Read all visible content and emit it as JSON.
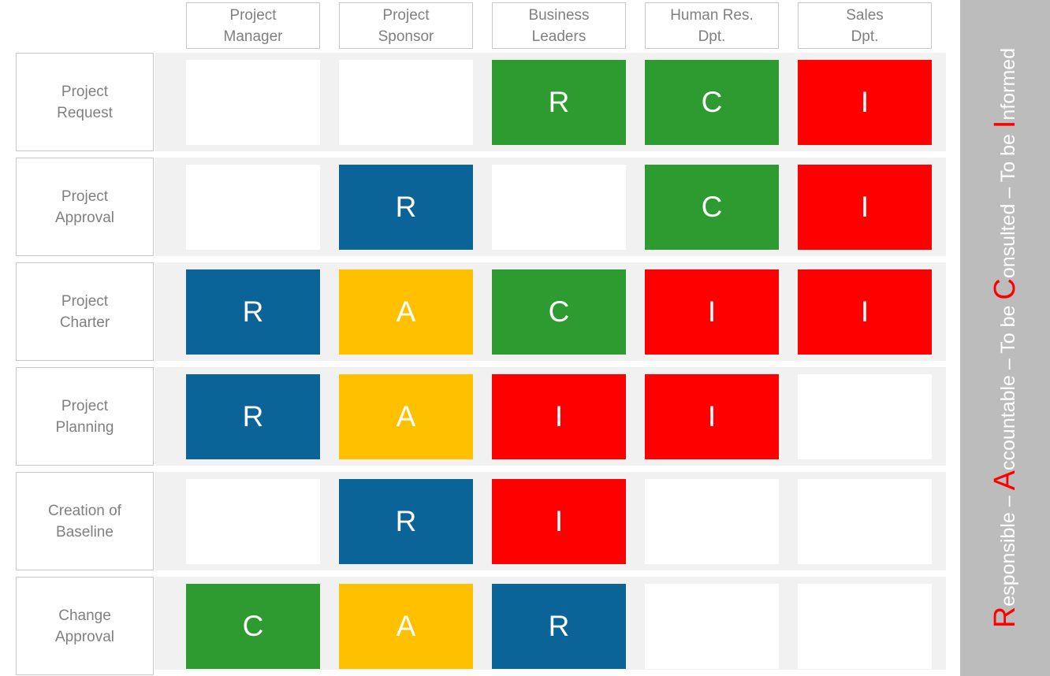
{
  "slide": {
    "background": "#ffffff"
  },
  "columns": [
    {
      "id": "project-manager",
      "label": "Project\nManager"
    },
    {
      "id": "project-sponsor",
      "label": "Project\nSponsor"
    },
    {
      "id": "business-leaders",
      "label": "Business\nLeaders"
    },
    {
      "id": "human-res-dpt",
      "label": "Human Res.\nDpt."
    },
    {
      "id": "sales-dpt",
      "label": "Sales\nDpt."
    }
  ],
  "rows": [
    {
      "id": "project-request",
      "label": "Project\nRequest",
      "cells": [
        null,
        null,
        {
          "letter": "R",
          "color": "green"
        },
        {
          "letter": "C",
          "color": "green"
        },
        {
          "letter": "I",
          "color": "red"
        }
      ]
    },
    {
      "id": "project-approval",
      "label": "Project\nApproval",
      "cells": [
        null,
        {
          "letter": "R",
          "color": "blue"
        },
        null,
        {
          "letter": "C",
          "color": "green"
        },
        {
          "letter": "I",
          "color": "red"
        }
      ]
    },
    {
      "id": "project-charter",
      "label": "Project\nCharter",
      "cells": [
        {
          "letter": "R",
          "color": "blue"
        },
        {
          "letter": "A",
          "color": "yellow"
        },
        {
          "letter": "C",
          "color": "green"
        },
        {
          "letter": "I",
          "color": "red"
        },
        {
          "letter": "I",
          "color": "red"
        }
      ]
    },
    {
      "id": "project-planning",
      "label": "Project\nPlanning",
      "cells": [
        {
          "letter": "R",
          "color": "blue"
        },
        {
          "letter": "A",
          "color": "yellow"
        },
        {
          "letter": "I",
          "color": "red"
        },
        {
          "letter": "I",
          "color": "red"
        },
        null
      ]
    },
    {
      "id": "creation-of-baseline",
      "label": "Creation of\nBaseline",
      "cells": [
        null,
        {
          "letter": "R",
          "color": "blue"
        },
        {
          "letter": "I",
          "color": "red"
        },
        null,
        null
      ]
    },
    {
      "id": "change-approval",
      "label": "Change\nApproval",
      "cells": [
        {
          "letter": "C",
          "color": "green"
        },
        {
          "letter": "A",
          "color": "yellow"
        },
        {
          "letter": "R",
          "color": "blue"
        },
        null,
        null
      ]
    }
  ],
  "colors": {
    "green": "#2e9b31",
    "blue": "#0a6498",
    "yellow": "#ffc000",
    "red": "#ff0000",
    "empty_cell": "#ffffff",
    "row_band": "#f1f1f2",
    "box_border": "#c8c8c8",
    "label_text": "#808080",
    "cell_letter": "#ffffff",
    "legend_bar": "#bcbcbc",
    "legend_text": "#ffffff",
    "legend_initial": "#ff0000"
  },
  "legend": {
    "full_text": "Responsible – Accountable – To be Consulted – To be Informed",
    "segments": [
      {
        "big": "R",
        "small": "esponsible – "
      },
      {
        "big": "A",
        "small": "ccountable – To be "
      },
      {
        "big": "C",
        "small": "onsulted – To be "
      },
      {
        "big": "I",
        "small": "nformed"
      }
    ]
  }
}
